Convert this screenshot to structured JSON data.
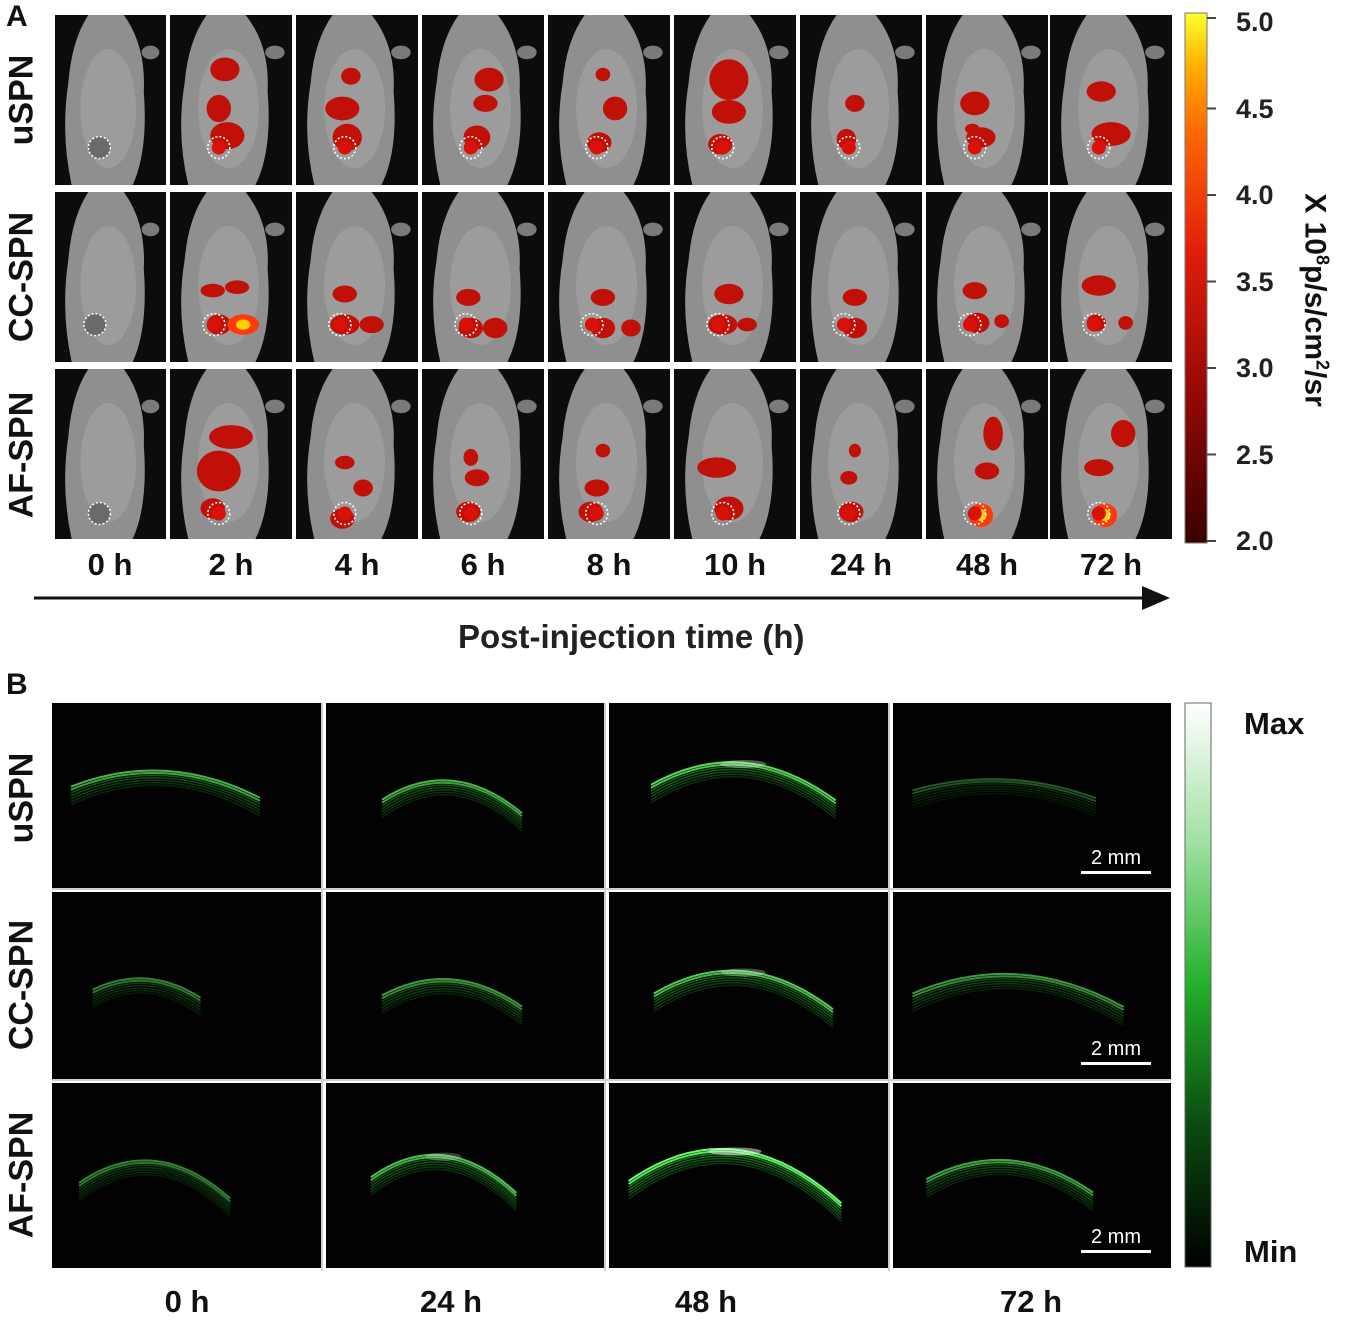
{
  "panelA": {
    "letter": "A",
    "rows": [
      "uSPN",
      "CC-SPN",
      "AF-SPN"
    ],
    "timepoints": [
      "0 h",
      "2 h",
      "4 h",
      "6 h",
      "8 h",
      "10 h",
      "24 h",
      "48 h",
      "72 h"
    ],
    "axis_title": "Post-injection time (h)",
    "colorbar": {
      "ticks": [
        "5.0",
        "4.5",
        "4.0",
        "3.5",
        "3.0",
        "2.5",
        "2.0"
      ],
      "unit_prefix": "X 10",
      "unit_exp": "8",
      "unit_mid": "p/s/cm",
      "unit_exp2": "2",
      "unit_suffix": "/sr"
    }
  },
  "panelB": {
    "letter": "B",
    "rows": [
      "uSPN",
      "CC-SPN",
      "AF-SPN"
    ],
    "timepoints": [
      "0 h",
      "24 h",
      "48 h",
      "72 h"
    ],
    "scale_bar": "2 mm",
    "colorbar": {
      "max": "Max",
      "min": "Min"
    }
  }
}
